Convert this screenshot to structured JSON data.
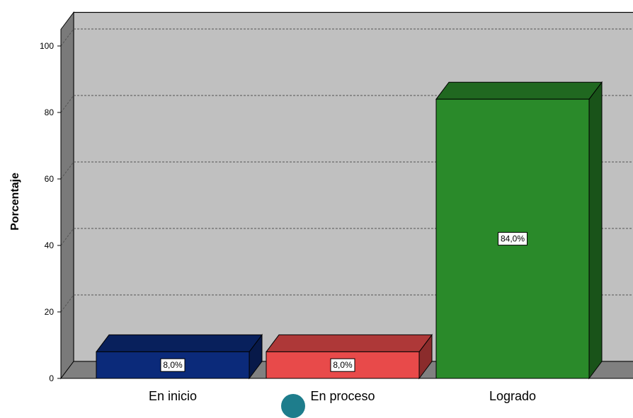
{
  "chart_data": {
    "type": "bar",
    "categories": [
      "En inicio",
      "En proceso",
      "Logrado"
    ],
    "values": [
      8.0,
      8.0,
      84.0
    ],
    "data_labels": [
      "8,0%",
      "8,0%",
      "84,0%"
    ],
    "bar_colors": [
      "#0b2a7a",
      "#e84a4a",
      "#2a8a2a"
    ],
    "xlabel": "",
    "ylabel": "Porcentaje",
    "ylim": [
      0,
      105
    ],
    "yticks": [
      0,
      20,
      40,
      60,
      80,
      100
    ],
    "grid": true,
    "style": "3d",
    "wall_color": "#c0c0c0",
    "floor_color": "#808080"
  }
}
